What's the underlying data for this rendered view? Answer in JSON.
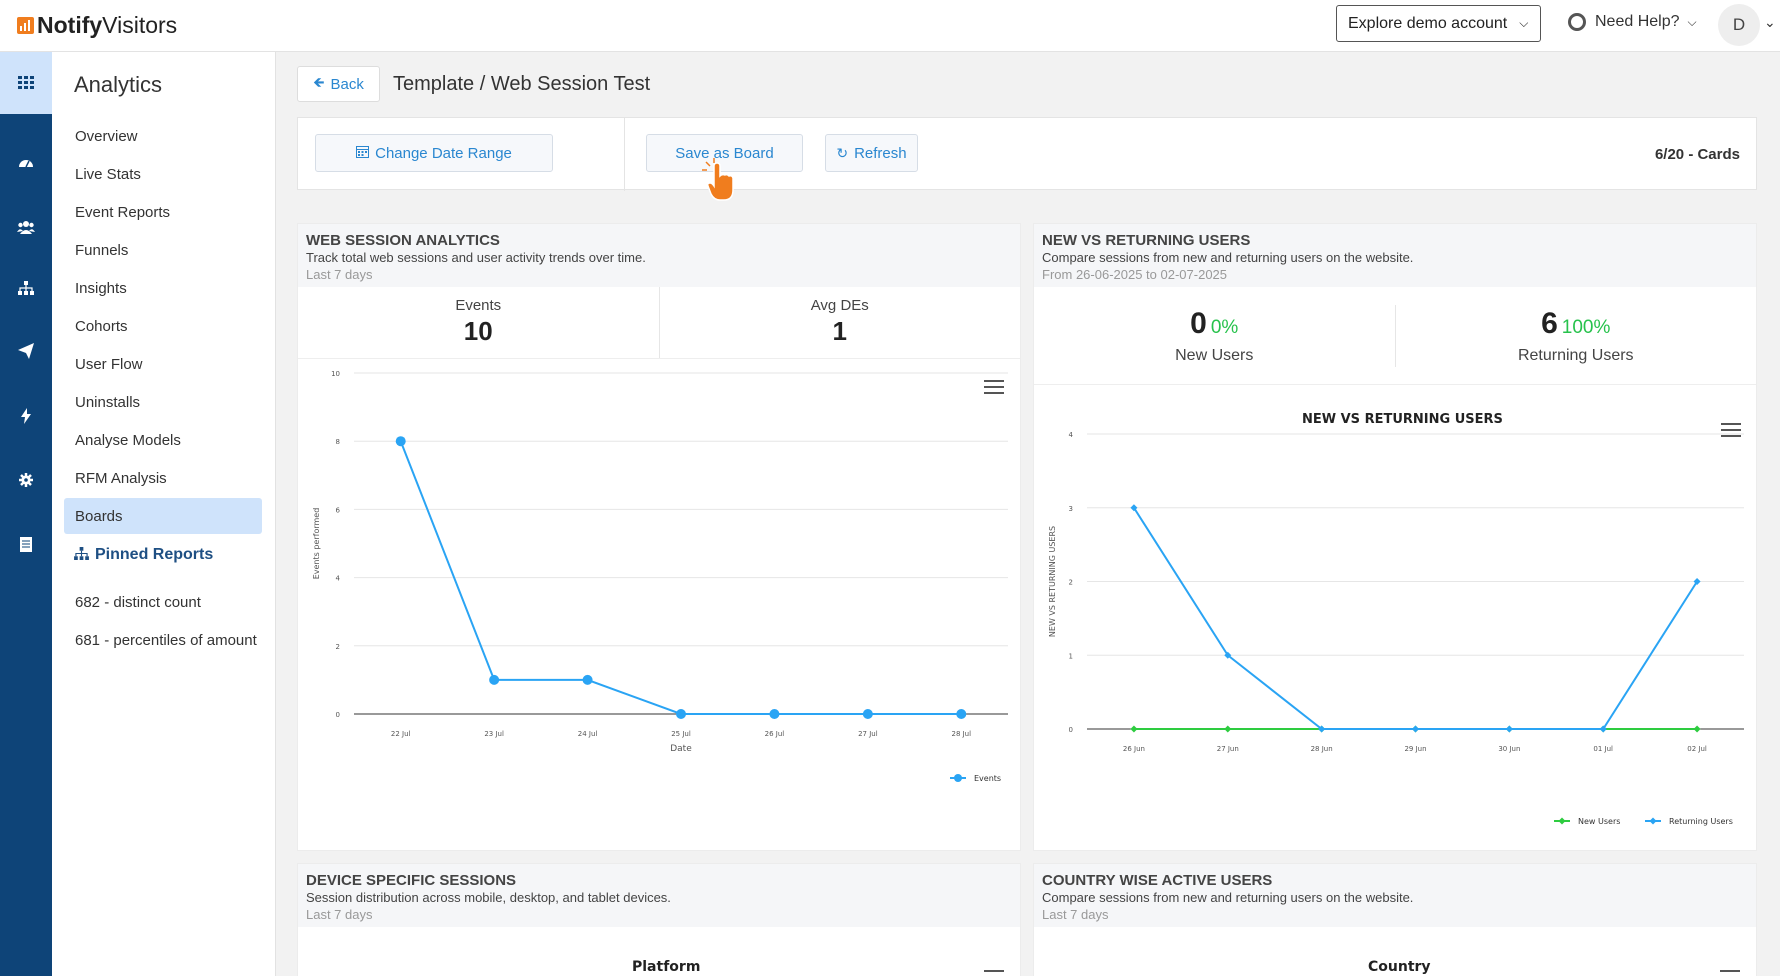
{
  "header": {
    "logo_bold": "Notify",
    "logo_rest": "Visitors",
    "explore_label": "Explore demo account",
    "help_label": "Need Help?",
    "avatar_initial": "D"
  },
  "rail": {
    "icons": [
      "apps-grid-icon",
      "dashboard-gauge-icon",
      "users-icon",
      "sitemap-icon",
      "paper-plane-icon",
      "bolt-icon",
      "gear-icon",
      "document-icon"
    ]
  },
  "sidebar": {
    "title": "Analytics",
    "items": [
      "Overview",
      "Live Stats",
      "Event Reports",
      "Funnels",
      "Insights",
      "Cohorts",
      "User Flow",
      "Uninstalls",
      "Analyse Models",
      "RFM Analysis",
      "Boards"
    ],
    "active_item": "Boards",
    "pinned_title": "Pinned Reports",
    "pinned_items": [
      "682 - distinct count",
      "681 - percentiles of amount"
    ]
  },
  "page": {
    "back_label": "Back",
    "title": "Template / Web Session Test"
  },
  "toolbar": {
    "change_date_label": "Change Date Range",
    "save_board_label": "Save as Board",
    "refresh_label": "Refresh",
    "cards_count": "6/20 - Cards"
  },
  "cards": {
    "web_session": {
      "title": "WEB SESSION ANALYTICS",
      "desc": "Track total web sessions and user activity trends over time.",
      "sub": "Last 7 days",
      "stat1_label": "Events",
      "stat1_value": "10",
      "stat2_label": "Avg DEs",
      "stat2_value": "1"
    },
    "new_returning": {
      "title": "NEW VS RETURNING USERS",
      "desc": "Compare sessions from new and returning users on the website.",
      "sub": "From 26-06-2025 to 02-07-2025",
      "new_value": "0",
      "new_pct": "0%",
      "new_label": "New Users",
      "ret_value": "6",
      "ret_pct": "100%",
      "ret_label": "Returning Users"
    },
    "device": {
      "title": "DEVICE SPECIFIC SESSIONS",
      "desc": "Session distribution across mobile, desktop, and tablet devices.",
      "sub": "Last 7 days",
      "chart_title": "Platform"
    },
    "country": {
      "title": "COUNTRY WISE ACTIVE USERS",
      "desc": "Compare sessions from new and returning users on the website.",
      "sub": "Last 7 days",
      "chart_title": "Country"
    }
  },
  "chart_data": [
    {
      "type": "line",
      "title": "",
      "x": [
        "22 Jul",
        "23 Jul",
        "24 Jul",
        "25 Jul",
        "26 Jul",
        "27 Jul",
        "28 Jul"
      ],
      "series": [
        {
          "name": "Events",
          "values": [
            8,
            1,
            1,
            0,
            0,
            0,
            0
          ],
          "color": "#2aa4f4"
        }
      ],
      "xlabel": "Date",
      "ylabel": "Events performed",
      "ylim": [
        0,
        10
      ],
      "yticks": [
        0,
        2,
        4,
        6,
        8,
        10
      ],
      "grid": true,
      "legend": "bottom-right"
    },
    {
      "type": "line",
      "title": "NEW VS RETURNING USERS",
      "x": [
        "26 Jun",
        "27 Jun",
        "28 Jun",
        "29 Jun",
        "30 Jun",
        "01 Jul",
        "02 Jul"
      ],
      "series": [
        {
          "name": "New Users",
          "values": [
            0,
            0,
            0,
            0,
            0,
            0,
            0
          ],
          "color": "#2ecc40"
        },
        {
          "name": "Returning Users",
          "values": [
            3,
            1,
            0,
            0,
            0,
            0,
            2
          ],
          "color": "#2aa4f4"
        }
      ],
      "xlabel": "",
      "ylabel": "NEW VS RETURNING USERS",
      "ylim": [
        0,
        4
      ],
      "yticks": [
        0,
        1,
        2,
        3,
        4
      ],
      "grid": true,
      "legend": "bottom-right"
    }
  ]
}
